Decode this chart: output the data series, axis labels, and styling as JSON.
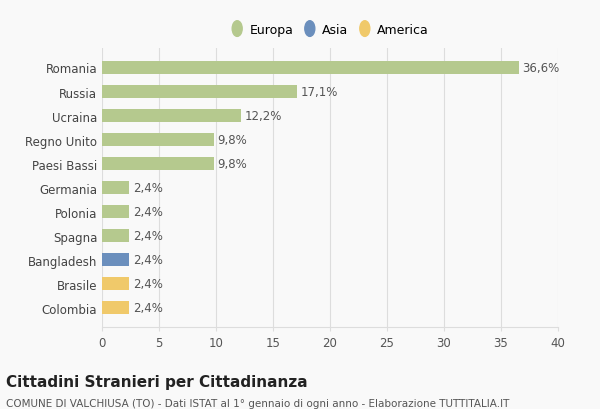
{
  "categories": [
    "Romania",
    "Russia",
    "Ucraina",
    "Regno Unito",
    "Paesi Bassi",
    "Germania",
    "Polonia",
    "Spagna",
    "Bangladesh",
    "Brasile",
    "Colombia"
  ],
  "values": [
    36.6,
    17.1,
    12.2,
    9.8,
    9.8,
    2.4,
    2.4,
    2.4,
    2.4,
    2.4,
    2.4
  ],
  "labels": [
    "36,6%",
    "17,1%",
    "12,2%",
    "9,8%",
    "9,8%",
    "2,4%",
    "2,4%",
    "2,4%",
    "2,4%",
    "2,4%",
    "2,4%"
  ],
  "colors": [
    "#b5c98e",
    "#b5c98e",
    "#b5c98e",
    "#b5c98e",
    "#b5c98e",
    "#b5c98e",
    "#b5c98e",
    "#b5c98e",
    "#6b8fbd",
    "#f0c96a",
    "#f0c96a"
  ],
  "legend_labels": [
    "Europa",
    "Asia",
    "America"
  ],
  "legend_colors": [
    "#b5c98e",
    "#6b8fbd",
    "#f0c96a"
  ],
  "xlim": [
    0,
    40
  ],
  "xticks": [
    0,
    5,
    10,
    15,
    20,
    25,
    30,
    35,
    40
  ],
  "title": "Cittadini Stranieri per Cittadinanza",
  "subtitle": "COMUNE DI VALCHIUSA (TO) - Dati ISTAT al 1° gennaio di ogni anno - Elaborazione TUTTITALIA.IT",
  "bg_color": "#f9f9f9",
  "grid_color": "#dddddd",
  "title_fontsize": 11,
  "subtitle_fontsize": 7.5,
  "label_fontsize": 8.5,
  "tick_fontsize": 8.5,
  "bar_height": 0.55
}
